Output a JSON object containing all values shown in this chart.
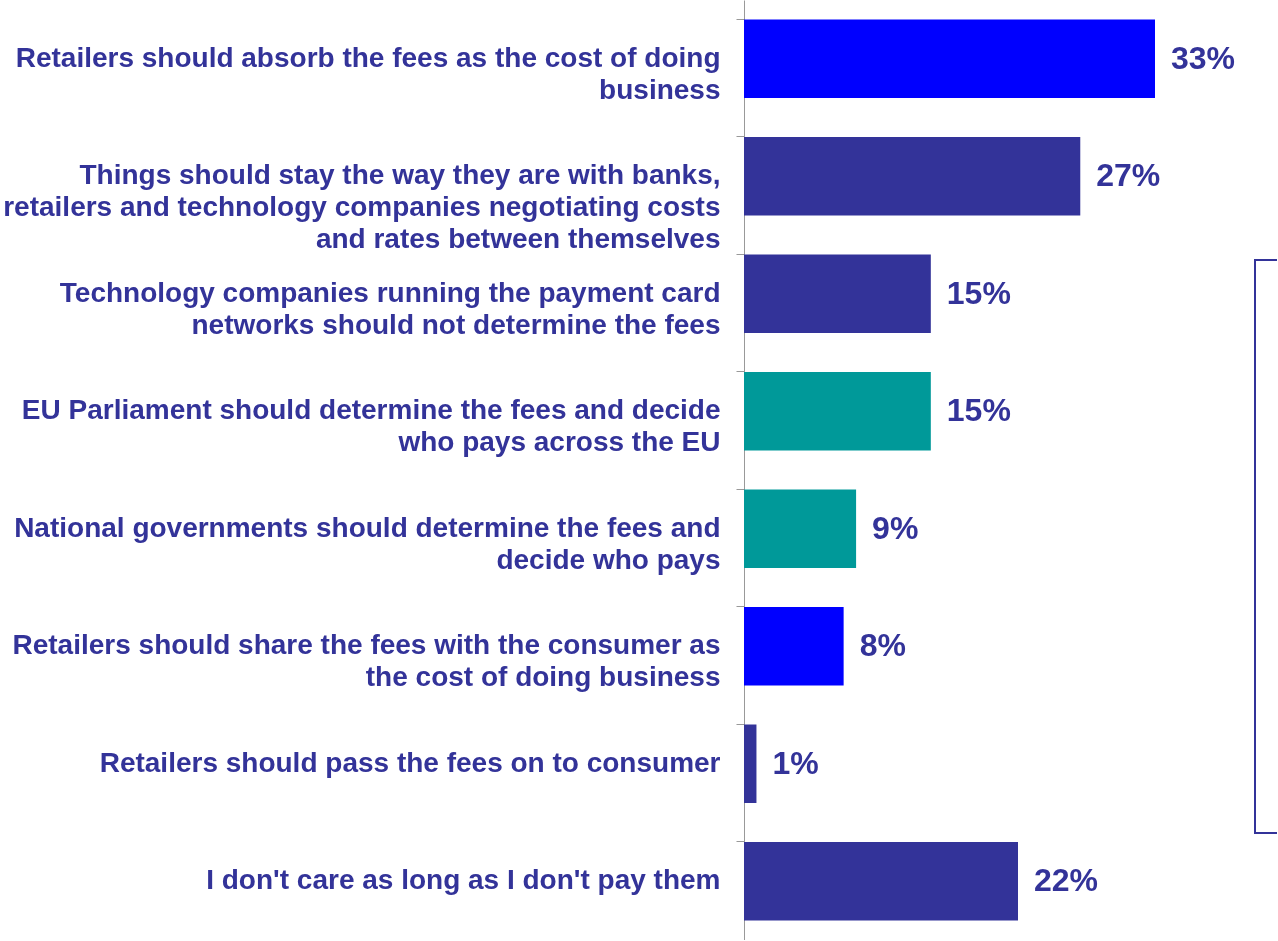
{
  "chart_data": {
    "type": "bar",
    "orientation": "horizontal",
    "value_labels": [
      "33%",
      "27%",
      "15%",
      "15%",
      "9%",
      "8%",
      "1%",
      "22%"
    ],
    "categories": [
      "Retailers should absorb the fees as the cost of doing business",
      "Things should stay the way they are with banks, retailers and technology companies negotiating costs and rates between themselves",
      "Technology companies running the payment card networks should not determine the fees",
      "EU Parliament should determine the fees and decide who pays across the EU",
      "National governments should determine the fees and decide who pays",
      "Retailers should share the fees with the consumer as the cost of doing business",
      "Retailers should pass the fees on to consumer",
      "I don't care as long as I don't pay them"
    ],
    "values": [
      33,
      27,
      15,
      15,
      9,
      8,
      1,
      22
    ],
    "colors": [
      "#0000ff",
      "#333399",
      "#333399",
      "#009999",
      "#009999",
      "#0000ff",
      "#333399",
      "#333399"
    ]
  }
}
